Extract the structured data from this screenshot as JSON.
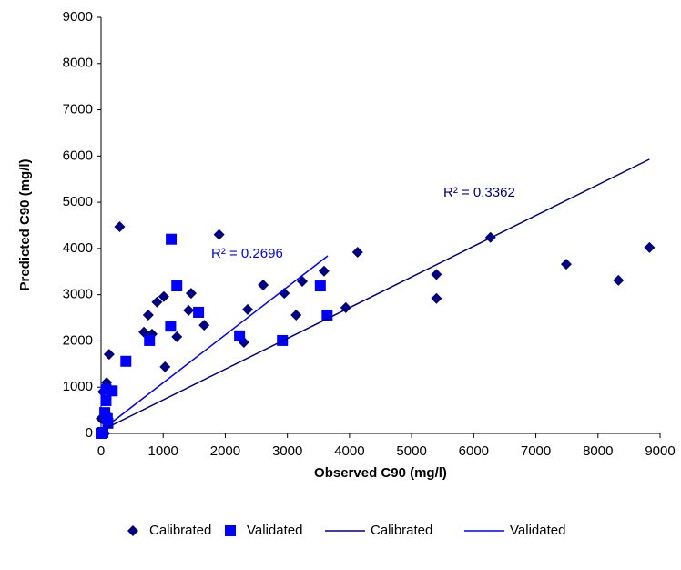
{
  "chart_data": {
    "type": "scatter",
    "xlabel": "Observed C90 (mg/l)",
    "ylabel": "Predicted C90 (mg/l)",
    "xlim": [
      0,
      9000
    ],
    "ylim": [
      0,
      9000
    ],
    "xticks": [
      0,
      1000,
      2000,
      3000,
      4000,
      5000,
      6000,
      7000,
      8000,
      9000
    ],
    "yticks": [
      0,
      1000,
      2000,
      3000,
      4000,
      5000,
      6000,
      7000,
      8000,
      9000
    ],
    "legend": "bottom",
    "series": [
      {
        "name": "Calibrated",
        "mark": "diamond",
        "color": "#000080",
        "x": [
          300,
          1900,
          6270,
          4130,
          7490,
          8330,
          8830,
          5400,
          5400,
          3940,
          3590,
          3240,
          3140,
          2950,
          2610,
          2360,
          2300,
          1450,
          1410,
          1660,
          1010,
          900,
          1030,
          1220,
          760,
          820,
          690,
          130,
          90,
          30,
          0,
          20,
          60,
          90
        ],
        "values": [
          4470,
          4300,
          4240,
          3920,
          3660,
          3310,
          4020,
          3440,
          2920,
          2720,
          3510,
          3290,
          2560,
          3030,
          3210,
          2680,
          1970,
          3030,
          2660,
          2340,
          2960,
          2840,
          1440,
          2090,
          2560,
          2150,
          2190,
          1710,
          1100,
          900,
          320,
          20,
          0,
          410
        ]
      },
      {
        "name": "Validated",
        "mark": "square",
        "color": "#0000ff",
        "x": [
          1130,
          1220,
          1570,
          1120,
          780,
          400,
          2230,
          2920,
          3530,
          3640,
          180,
          80,
          80,
          60,
          30,
          0,
          100,
          110
        ],
        "values": [
          4200,
          3190,
          2620,
          2320,
          2010,
          1560,
          2110,
          2010,
          3190,
          2560,
          920,
          710,
          950,
          450,
          20,
          0,
          320,
          220
        ]
      },
      {
        "name": "Calibrated",
        "mark": "line",
        "color": "#000080",
        "x": [
          0,
          8830
        ],
        "values": [
          60,
          5930
        ]
      },
      {
        "name": "Validated",
        "mark": "line",
        "color": "#0000ff",
        "x": [
          0,
          3650
        ],
        "values": [
          60,
          3840
        ]
      }
    ],
    "annotations": [
      {
        "text": "R² = 0.3362",
        "color": "#000080"
      },
      {
        "text": "R² = 0.2696",
        "color": "#0000ff"
      }
    ]
  }
}
